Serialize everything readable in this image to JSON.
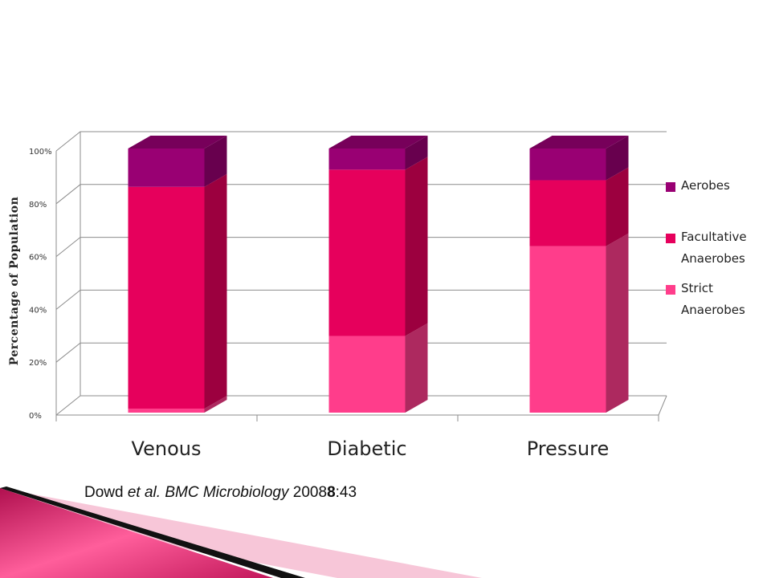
{
  "chart_data": {
    "type": "bar",
    "stacked": true,
    "three_d": true,
    "categories": [
      "Venous",
      "Diabetic",
      "Pressure"
    ],
    "series": [
      {
        "name": "Strict Anaerobes",
        "values": [
          1.5,
          29,
          63
        ],
        "color": "#ff3d8b"
      },
      {
        "name": "Facultative Anaerobes",
        "values": [
          84,
          63,
          25
        ],
        "color": "#e6005c"
      },
      {
        "name": "Aerobes",
        "values": [
          14.5,
          8,
          12
        ],
        "color": "#990073"
      }
    ],
    "ylabel": "Percentage of Population",
    "xlabel": "",
    "ylim": [
      0,
      100
    ],
    "yticks": [
      "0%",
      "20%",
      "40%",
      "60%",
      "80%",
      "100%"
    ],
    "grid": true,
    "legend_position": "right",
    "legend": [
      {
        "line1": "Aerobes",
        "line2": "",
        "color": "#990073"
      },
      {
        "line1": "Facultative",
        "line2": "Anaerobes",
        "color": "#e6005c"
      },
      {
        "line1": "Strict",
        "line2": "Anaerobes",
        "color": "#ff3d8b"
      }
    ]
  },
  "citation": {
    "author": "Dowd",
    "etal": "et al.",
    "journal": "BMC Microbiology",
    "year": "2008",
    "volume": "8",
    "page": ":43"
  },
  "decoration_colors": {
    "dark_band": "#111111",
    "magenta": "#e8357a",
    "light_pink": "#f7c6d8"
  }
}
